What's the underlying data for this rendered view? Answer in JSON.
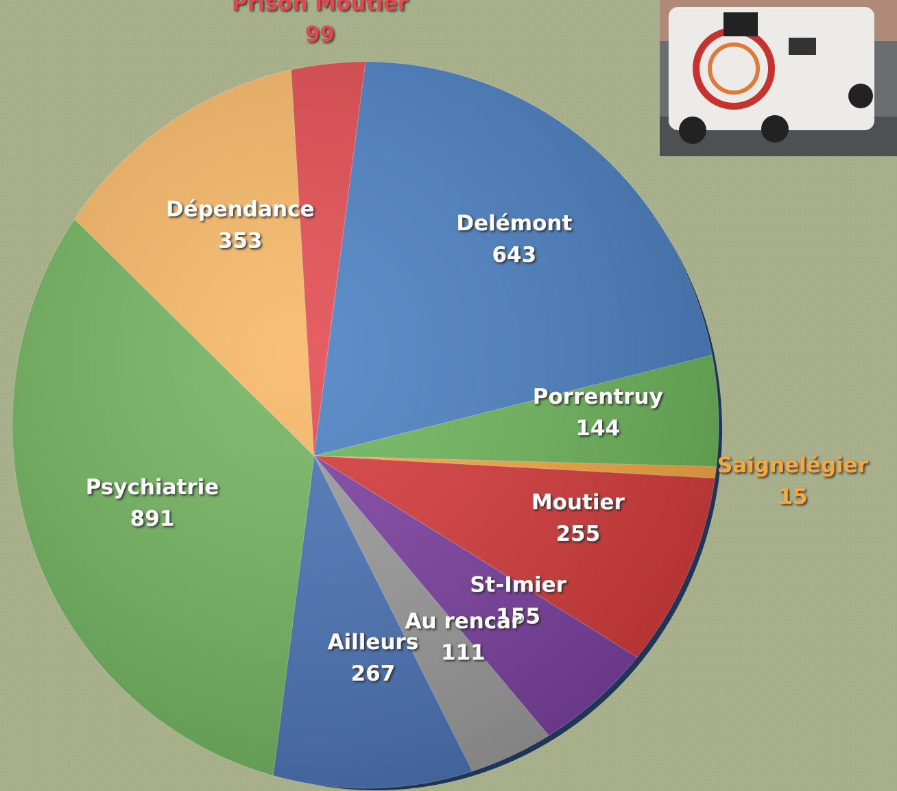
{
  "chart_data": {
    "type": "pie",
    "categories": [
      "Delémont",
      "Porrentruy",
      "Saignelégier",
      "Moutier",
      "St-Imier",
      "Au rencar",
      "Ailleurs",
      "Psychiatrie",
      "Dépendance",
      "Prison Moutier"
    ],
    "values": [
      643,
      144,
      15,
      255,
      155,
      111,
      267,
      891,
      353,
      99
    ],
    "colors": [
      "#4a7fc1",
      "#6db55a",
      "#f5a742",
      "#d63a3a",
      "#7b3fa0",
      "#9a9a9a",
      "#4a72b5",
      "#71b35e",
      "#f7b765",
      "#e24a4f"
    ]
  }
}
